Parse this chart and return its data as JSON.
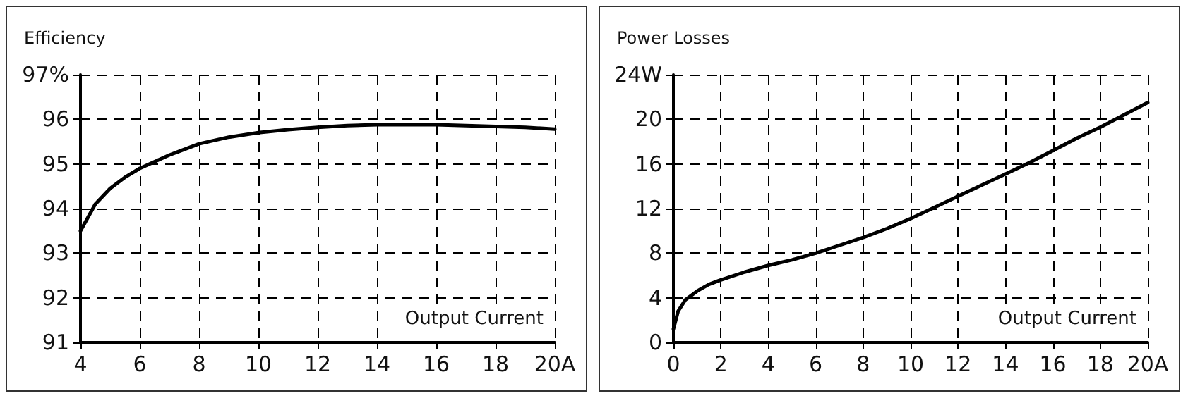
{
  "chart_data": [
    {
      "type": "line",
      "ylabel": "Efficiency",
      "xlabel": "Output Current",
      "xlim": [
        4,
        20
      ],
      "xticks": [
        4,
        6,
        8,
        10,
        12,
        14,
        16,
        18,
        {
          "value": 20,
          "label": "20A"
        }
      ],
      "ylim": [
        91,
        97
      ],
      "yticks": [
        91,
        92,
        93,
        94,
        95,
        96,
        {
          "value": 97,
          "label": "97%"
        }
      ],
      "grid": true,
      "marker": "none",
      "line_style": "solid",
      "series": [
        {
          "color": "#000000",
          "x": [
            4,
            4.5,
            5,
            5.5,
            6,
            7,
            8,
            9,
            10,
            11,
            12,
            13,
            14,
            15,
            16,
            17,
            18,
            19,
            20
          ],
          "values": [
            93.5,
            94.1,
            94.45,
            94.7,
            94.9,
            95.2,
            95.45,
            95.6,
            95.7,
            95.77,
            95.82,
            95.86,
            95.88,
            95.88,
            95.88,
            95.86,
            95.84,
            95.82,
            95.78
          ]
        }
      ]
    },
    {
      "type": "line",
      "ylabel": "Power Losses",
      "xlabel": "Output Current",
      "xlim": [
        0,
        20
      ],
      "xticks": [
        0,
        2,
        4,
        6,
        8,
        10,
        12,
        14,
        16,
        18,
        {
          "value": 20,
          "label": "20A"
        }
      ],
      "ylim": [
        0,
        24
      ],
      "yticks": [
        0,
        4,
        8,
        12,
        16,
        20,
        {
          "value": 24,
          "label": "24W"
        }
      ],
      "grid": true,
      "marker": "none",
      "line_style": "solid",
      "series": [
        {
          "color": "#000000",
          "x": [
            0,
            0.2,
            0.5,
            1,
            1.5,
            2,
            3,
            4,
            5,
            6,
            7,
            8,
            9,
            10,
            11,
            12,
            13,
            14,
            15,
            16,
            17,
            18,
            19,
            20
          ],
          "values": [
            1.2,
            2.8,
            3.8,
            4.6,
            5.2,
            5.6,
            6.3,
            6.9,
            7.4,
            8.0,
            8.7,
            9.4,
            10.2,
            11.1,
            12.1,
            13.1,
            14.1,
            15.1,
            16.1,
            17.2,
            18.3,
            19.3,
            20.4,
            21.5
          ]
        }
      ]
    }
  ]
}
